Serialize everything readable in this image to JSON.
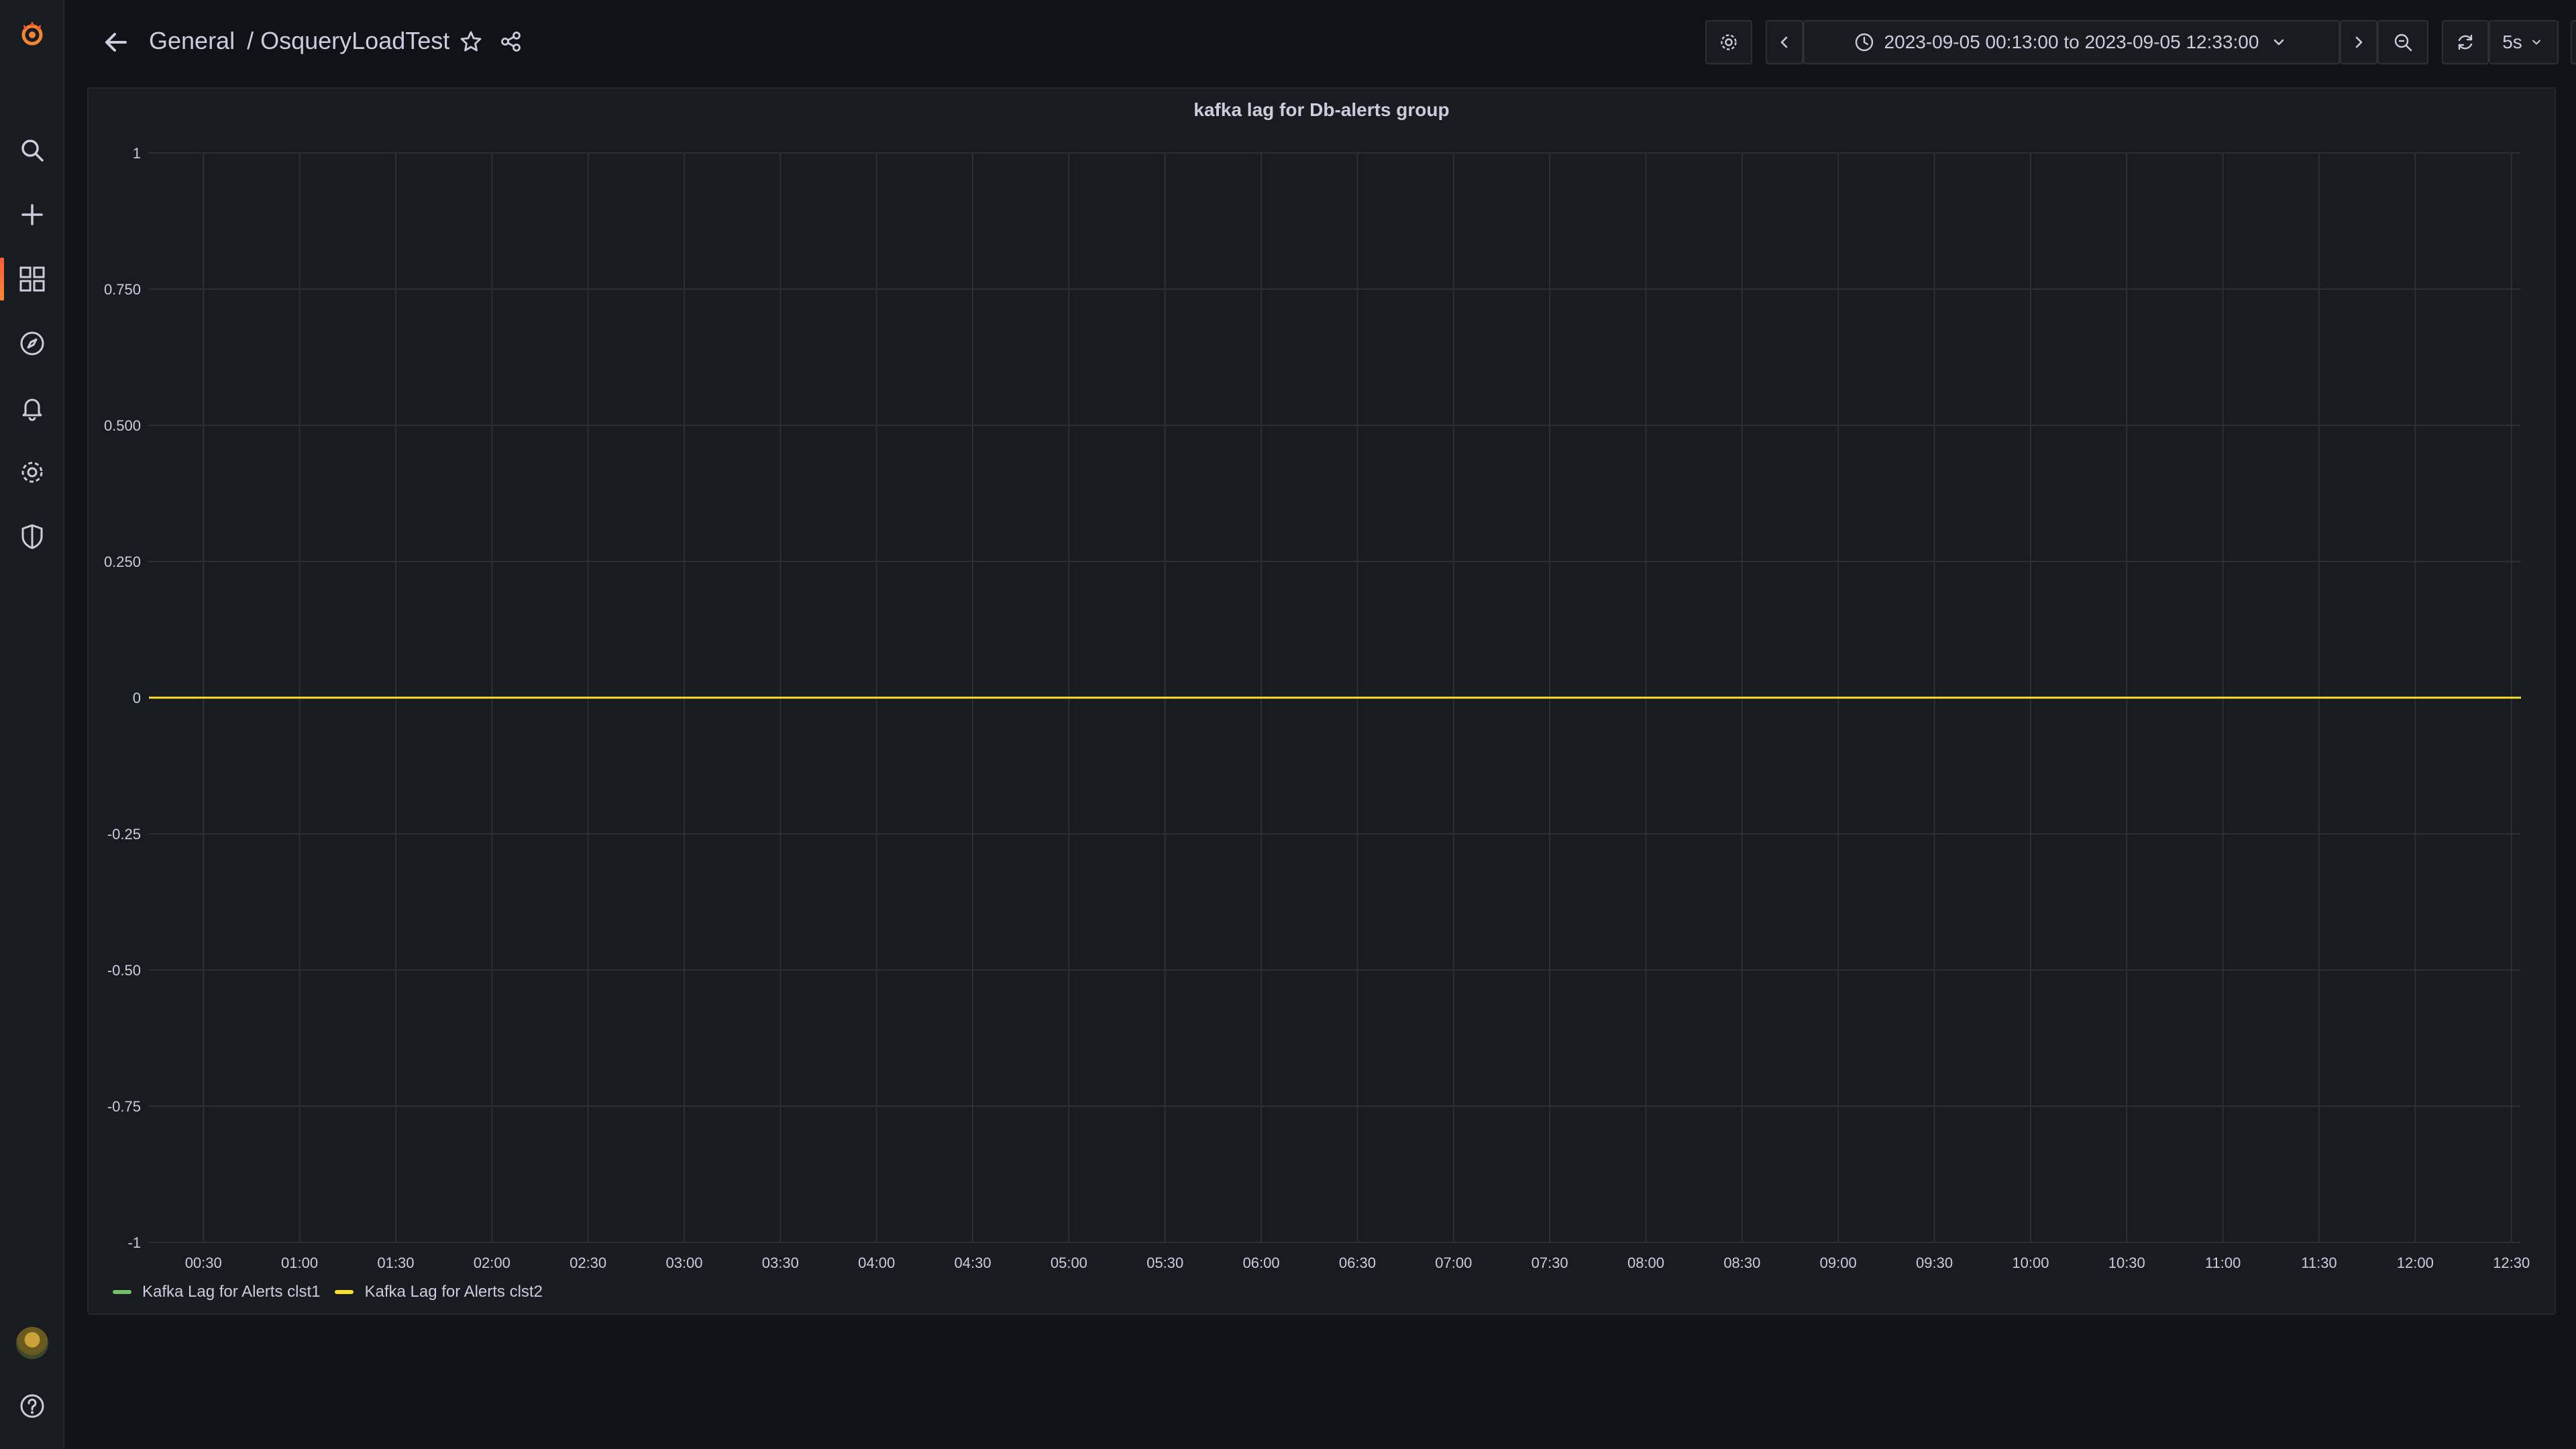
{
  "breadcrumb": {
    "folder": "General",
    "separator": "/",
    "dashboard": "OsqueryLoadTest"
  },
  "sidebar": {
    "items": [
      {
        "name": "search-icon"
      },
      {
        "name": "plus-icon"
      },
      {
        "name": "dashboards-grid-icon"
      },
      {
        "name": "compass-icon"
      },
      {
        "name": "bell-icon"
      },
      {
        "name": "gear-icon"
      },
      {
        "name": "shield-icon"
      }
    ],
    "bottom": [
      {
        "name": "avatar"
      },
      {
        "name": "help-icon"
      }
    ]
  },
  "toolbar": {
    "time_range": "2023-09-05 00:13:00 to 2023-09-05 12:33:00",
    "refresh_interval": "5s"
  },
  "colors": {
    "accent": "#f55f3e",
    "series1": "#73bf69",
    "series2": "#fade2a",
    "grid": "#2c2f36"
  },
  "chart_data": {
    "type": "line",
    "title": "kafka lag for Db-alerts group",
    "x_ticks": [
      "00:30",
      "01:00",
      "01:30",
      "02:00",
      "02:30",
      "03:00",
      "03:30",
      "04:00",
      "04:30",
      "05:00",
      "05:30",
      "06:00",
      "06:30",
      "07:00",
      "07:30",
      "08:00",
      "08:30",
      "09:00",
      "09:30",
      "10:00",
      "10:30",
      "11:00",
      "11:30",
      "12:00",
      "12:30"
    ],
    "x_range": [
      "00:13",
      "12:33"
    ],
    "y_ticks": [
      "1",
      "0.750",
      "0.500",
      "0.250",
      "0",
      "-0.25",
      "-0.50",
      "-0.75",
      "-1"
    ],
    "y_tick_values": [
      1,
      0.75,
      0.5,
      0.25,
      0,
      -0.25,
      -0.5,
      -0.75,
      -1
    ],
    "ylim": [
      -1,
      1
    ],
    "grid": true,
    "legend_position": "bottom-left",
    "series": [
      {
        "name": "Kafka Lag for Alerts clst1",
        "color": "#73bf69",
        "x": [
          "00:13",
          "12:33"
        ],
        "values": [
          0,
          0
        ]
      },
      {
        "name": "Kafka Lag for Alerts clst2",
        "color": "#fade2a",
        "x": [
          "00:13",
          "12:33"
        ],
        "values": [
          0,
          0
        ]
      }
    ]
  }
}
